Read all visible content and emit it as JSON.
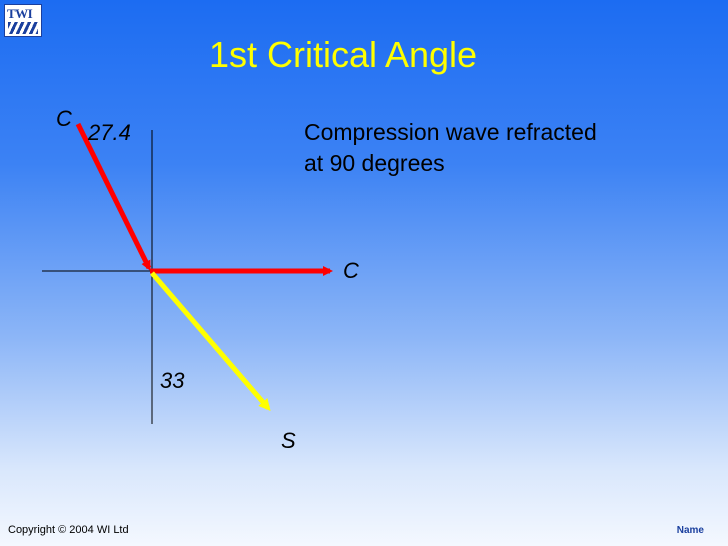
{
  "logo": {
    "text": "TWI"
  },
  "title": "1st Critical Angle",
  "diagram": {
    "incident_label": "C",
    "incident_angle": "27.4",
    "refracted_compression_label": "C",
    "refracted_shear_label": "S",
    "shear_angle": "33",
    "description_line1": "Compression wave refracted",
    "description_line2": "at 90 degrees",
    "colors": {
      "compression": "#ff0000",
      "shear": "#ffff00",
      "normal_line": "#000000"
    }
  },
  "footer": {
    "copyright": "Copyright © 2004 WI Ltd",
    "name": "Name"
  }
}
